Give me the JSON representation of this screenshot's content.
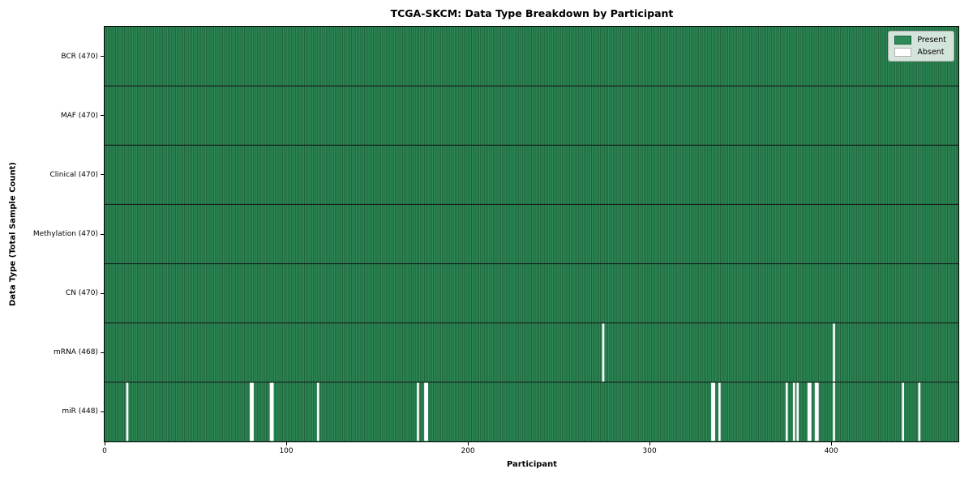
{
  "title": "TCGA-SKCM: Data Type Breakdown by Participant",
  "chart_data": {
    "type": "heatmap",
    "title": "TCGA-SKCM: Data Type Breakdown by Participant",
    "xlabel": "Participant",
    "ylabel": "Data Type (Total Sample Count)",
    "x_range": [
      0,
      470
    ],
    "x_ticks": [
      0,
      100,
      200,
      300,
      400
    ],
    "n_participants": 470,
    "grid": false,
    "legend": {
      "position": "upper right",
      "entries": [
        {
          "label": "Present",
          "color": "#2e8b57"
        },
        {
          "label": "Absent",
          "color": "#ffffff"
        }
      ]
    },
    "colors": {
      "present": "#2e8b57",
      "absent": "#ffffff",
      "cell_edge": "#1b5535",
      "row_divider": "#141414",
      "frame": "#000000",
      "legend_border": "#b3b3b3"
    },
    "rows": [
      {
        "label": "BCR (470)",
        "data_type": "BCR",
        "present_count": 470,
        "absent": []
      },
      {
        "label": "MAF (470)",
        "data_type": "MAF",
        "present_count": 470,
        "absent": []
      },
      {
        "label": "Clinical (470)",
        "data_type": "Clinical",
        "present_count": 470,
        "absent": []
      },
      {
        "label": "Methylation (470)",
        "data_type": "Methylation",
        "present_count": 470,
        "absent": []
      },
      {
        "label": "CN (470)",
        "data_type": "CN",
        "present_count": 470,
        "absent": []
      },
      {
        "label": "mRNA (468)",
        "data_type": "mRNA",
        "present_count": 468,
        "absent": [
          274,
          401
        ]
      },
      {
        "label": "miR (448)",
        "data_type": "miR",
        "present_count": 448,
        "absent": [
          12,
          80,
          81,
          91,
          92,
          117,
          172,
          176,
          177,
          334,
          335,
          338,
          375,
          379,
          381,
          387,
          388,
          391,
          392,
          401,
          439,
          448
        ]
      }
    ]
  }
}
